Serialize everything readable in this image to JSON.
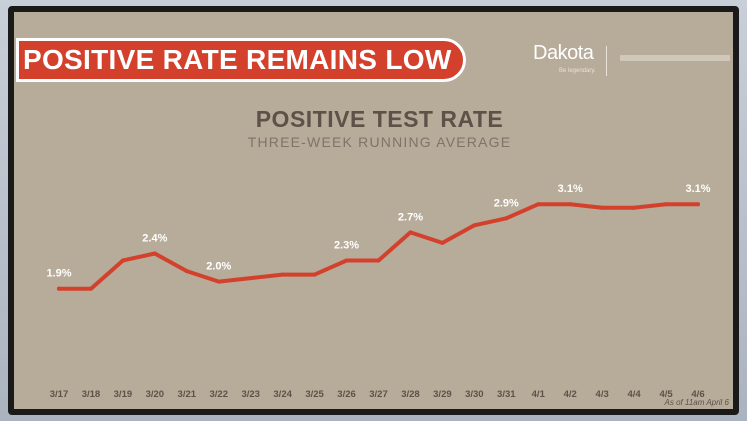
{
  "banner": {
    "title": "POSITIVE RATE REMAINS LOW"
  },
  "logo": {
    "word": "Dakota",
    "sub": "Be legendary."
  },
  "footnote": "As of 11am April 6",
  "chart_data": {
    "type": "line",
    "title": "POSITIVE TEST RATE",
    "subtitle": "THREE-WEEK RUNNING AVERAGE",
    "xlabel": "",
    "ylabel": "",
    "grid": false,
    "categories": [
      "3/17",
      "3/18",
      "3/19",
      "3/20",
      "3/21",
      "3/22",
      "3/23",
      "3/24",
      "3/25",
      "3/26",
      "3/27",
      "3/28",
      "3/29",
      "3/30",
      "3/31",
      "4/1",
      "4/2",
      "4/3",
      "4/4",
      "4/5",
      "4/6"
    ],
    "series": [
      {
        "values": [
          1.9,
          1.9,
          2.3,
          2.4,
          2.15,
          2.0,
          2.05,
          2.1,
          2.1,
          2.3,
          2.3,
          2.7,
          2.55,
          2.8,
          2.9,
          3.1,
          3.1,
          3.05,
          3.05,
          3.1,
          3.1
        ],
        "color": "#d3412d"
      }
    ],
    "data_labels": [
      {
        "index": 0,
        "text": "1.9%"
      },
      {
        "index": 3,
        "text": "2.4%"
      },
      {
        "index": 5,
        "text": "2.0%"
      },
      {
        "index": 9,
        "text": "2.3%"
      },
      {
        "index": 11,
        "text": "2.7%"
      },
      {
        "index": 14,
        "text": "2.9%"
      },
      {
        "index": 16,
        "text": "3.1%"
      },
      {
        "index": 20,
        "text": "3.1%"
      }
    ],
    "ylim": [
      1.0,
      3.7
    ]
  }
}
